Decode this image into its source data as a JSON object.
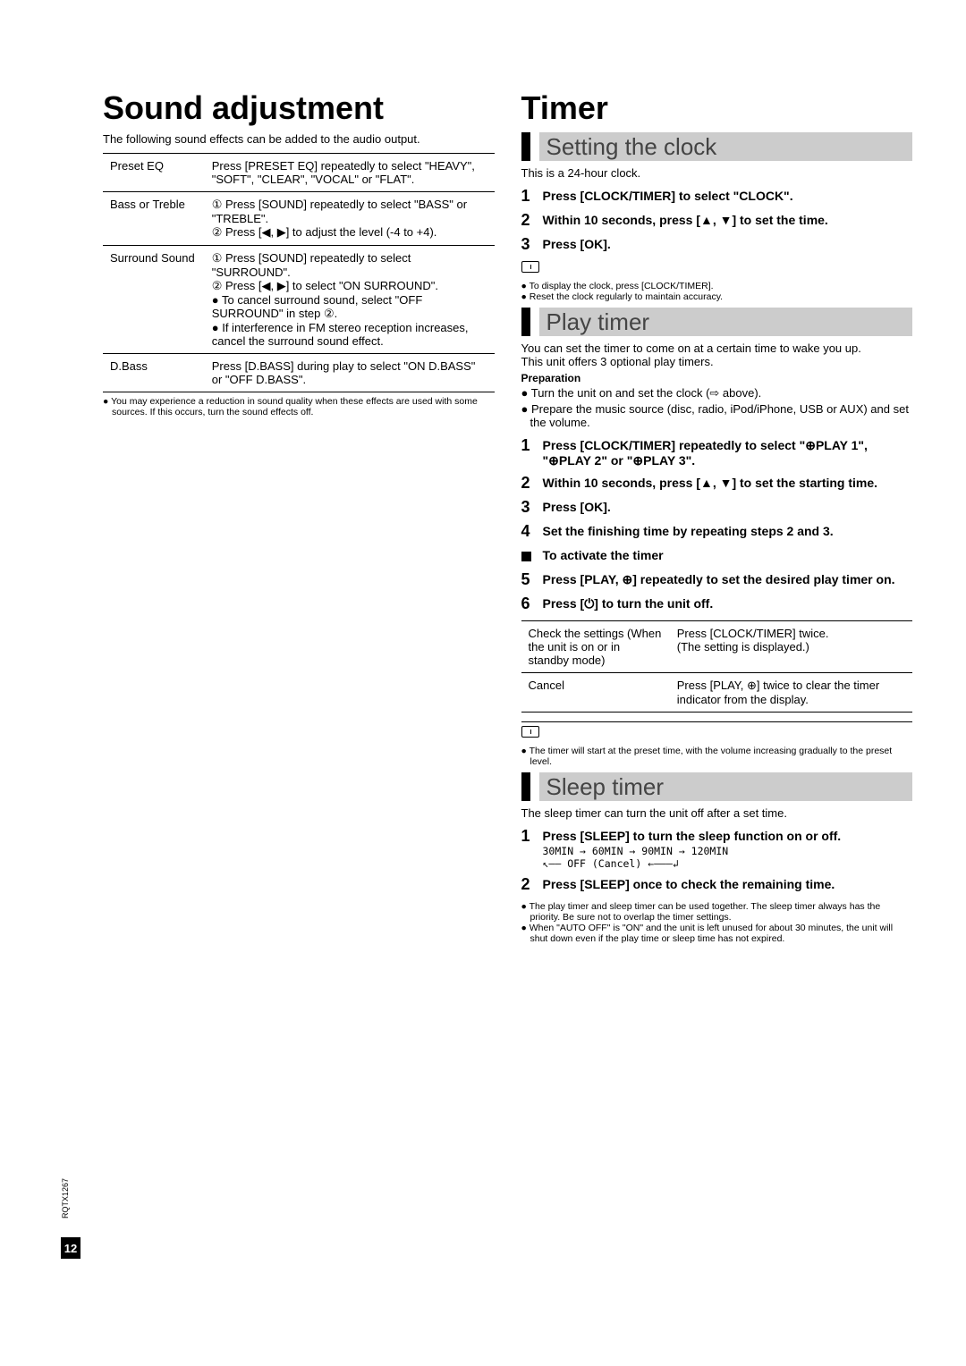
{
  "colors": {
    "heading_gray": "#444444",
    "bar_gray": "#cccccc",
    "text": "#000000",
    "bg": "#ffffff"
  },
  "fonts": {
    "h1_size": 36,
    "subheading_size": 26,
    "body_size": 13,
    "small_size": 10.5
  },
  "page_number": "12",
  "doc_code": "RQTX1267",
  "left": {
    "title": "Sound adjustment",
    "intro": "The following sound effects can be added to the audio output.",
    "table": [
      {
        "label": "Preset EQ",
        "text": "Press [PRESET EQ] repeatedly to select \"HEAVY\", \"SOFT\", \"CLEAR\", \"VOCAL\" or \"FLAT\"."
      },
      {
        "label": "Bass or Treble",
        "text": "① Press [SOUND] repeatedly to select \"BASS\" or \"TREBLE\".\n② Press [◀, ▶] to adjust the level (-4 to +4)."
      },
      {
        "label": "Surround Sound",
        "text": "① Press [SOUND] repeatedly to select \"SURROUND\".\n② Press [◀, ▶] to select \"ON SURROUND\".\n● To cancel surround sound, select \"OFF SURROUND\" in step ②.\n● If interference in FM stereo reception increases, cancel the surround sound effect."
      },
      {
        "label": "D.Bass",
        "text": "Press [D.BASS] during play to select \"ON D.BASS\" or \"OFF D.BASS\"."
      }
    ],
    "footnote": "● You may experience a reduction in sound quality when these effects are used with some sources. If this occurs, turn the sound effects off."
  },
  "right": {
    "title": "Timer",
    "clock": {
      "heading": "Setting the clock",
      "intro": "This is a 24-hour clock.",
      "steps": [
        "Press [CLOCK/TIMER] to select \"CLOCK\".",
        "Within 10 seconds, press [▲, ▼] to set the time.",
        "Press [OK]."
      ],
      "notes": [
        "● To display the clock, press [CLOCK/TIMER].",
        "● Reset the clock regularly to maintain accuracy."
      ]
    },
    "play": {
      "heading": "Play timer",
      "intro": "You can set the timer to come on at a certain time to wake you up.",
      "intro2": "This unit offers 3 optional play timers.",
      "prep_label": "Preparation",
      "prep": [
        "● Turn the unit on and set the clock (⇨ above).",
        "● Prepare the music source (disc, radio, iPod/iPhone, USB or AUX) and set the volume."
      ],
      "steps": [
        "Press [CLOCK/TIMER] repeatedly to select \"⊕PLAY 1\", \"⊕PLAY 2\" or \"⊕PLAY 3\".",
        "Within 10 seconds, press [▲, ▼] to set the starting time.",
        "Press [OK].",
        "Set the finishing time by repeating steps 2 and 3."
      ],
      "activate_label": "To activate the timer",
      "steps2": [
        "Press [PLAY, ⊕] repeatedly to set the desired play timer on.",
        "Press [⏻] to turn the unit off."
      ],
      "table": [
        {
          "label": "Check the settings (When the unit is on or in standby mode)",
          "text": "Press [CLOCK/TIMER] twice.\n(The setting is displayed.)"
        },
        {
          "label": "Cancel",
          "text": "Press [PLAY, ⊕] twice to clear the timer indicator from the display."
        }
      ],
      "note": "● The timer will start at the preset time, with the volume increasing gradually to the preset level."
    },
    "sleep": {
      "heading": "Sleep timer",
      "intro": "The sleep timer can turn the unit off after a set time.",
      "steps": [
        {
          "main": "Press [SLEEP] to turn the sleep function on or off.",
          "sub": "30MIN → 60MIN → 90MIN → 120MIN\n↖—— OFF (Cancel) ←———↲"
        },
        {
          "main": "Press [SLEEP] once to check the remaining time."
        }
      ],
      "notes": [
        "● The play timer and sleep timer can be used together. The sleep timer always has the priority. Be sure not to overlap the timer settings.",
        "● When \"AUTO OFF\" is \"ON\" and the unit is left unused for about 30 minutes, the unit will shut down even if the play time or sleep time has not expired."
      ]
    }
  }
}
